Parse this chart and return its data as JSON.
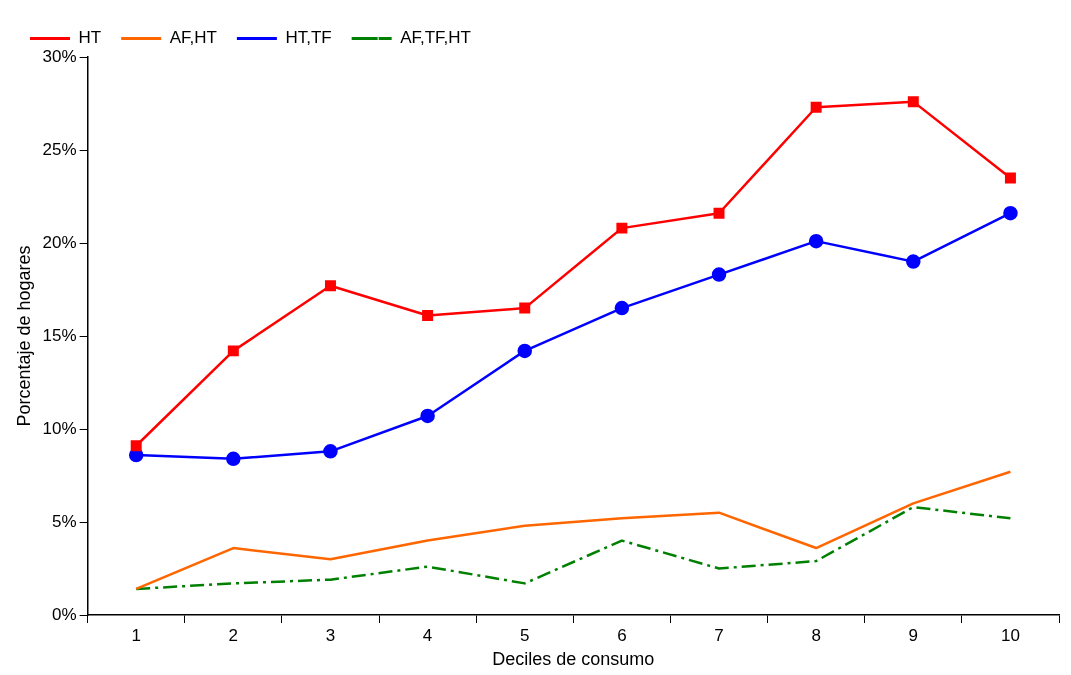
{
  "chart_data": {
    "type": "line",
    "xlabel": "Deciles de consumo",
    "ylabel": "Porcentaje de hogares",
    "categories": [
      "1",
      "2",
      "3",
      "4",
      "5",
      "6",
      "7",
      "8",
      "9",
      "10"
    ],
    "ylim": [
      0,
      30
    ],
    "yticks": [
      {
        "value": 0,
        "label": "0%"
      },
      {
        "value": 5,
        "label": "5%"
      },
      {
        "value": 10,
        "label": "10%"
      },
      {
        "value": 15,
        "label": "15%"
      },
      {
        "value": 20,
        "label": "20%"
      },
      {
        "value": 25,
        "label": "25%"
      },
      {
        "value": 30,
        "label": "30%"
      }
    ],
    "grid": false,
    "legend": "top left",
    "series": [
      {
        "name": "HT",
        "color": "#ff0000",
        "marker": "square",
        "line_style": "solid",
        "values": [
          9.1,
          14.2,
          17.7,
          16.1,
          16.5,
          20.8,
          21.6,
          27.3,
          27.6,
          23.5
        ]
      },
      {
        "name": "AF,HT",
        "color": "#ff6600",
        "marker": "none",
        "line_style": "solid",
        "values": [
          1.4,
          3.6,
          3.0,
          4.0,
          4.8,
          5.2,
          5.5,
          3.6,
          6.0,
          7.7
        ]
      },
      {
        "name": "HT,TF",
        "color": "#0000ff",
        "marker": "circle",
        "line_style": "solid",
        "values": [
          8.6,
          8.4,
          8.8,
          10.7,
          14.2,
          16.5,
          18.3,
          20.1,
          19.0,
          21.6
        ]
      },
      {
        "name": "AF,TF,HT",
        "color": "#008000",
        "marker": "none",
        "line_style": "dashed",
        "values": [
          1.4,
          1.7,
          1.9,
          2.6,
          1.7,
          4.0,
          2.5,
          2.9,
          5.8,
          5.2
        ]
      }
    ]
  }
}
